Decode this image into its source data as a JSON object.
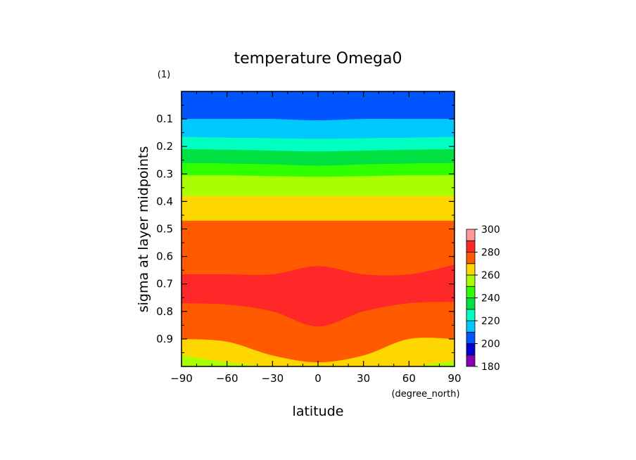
{
  "chart_data": {
    "type": "contour",
    "title": "temperature Omega0",
    "ylabel": "sigma at layer midpoints",
    "yunit": "(1)",
    "xlabel": "latitude",
    "xunit": "(degree_north)",
    "xlim": [
      -90,
      90
    ],
    "ylim": [
      0.0,
      1.0
    ],
    "y_inverted": true,
    "xticks": [
      -90,
      -60,
      -30,
      0,
      30,
      60,
      90
    ],
    "xtick_labels": [
      "−90",
      "−60",
      "−30",
      "0",
      "30",
      "60",
      "90"
    ],
    "yticks": [
      0.1,
      0.2,
      0.3,
      0.4,
      0.5,
      0.6,
      0.7,
      0.8,
      0.9
    ],
    "ytick_labels": [
      "0.1",
      "0.2",
      "0.3",
      "0.4",
      "0.5",
      "0.6",
      "0.7",
      "0.8",
      "0.9"
    ],
    "colorbar": {
      "levels": [
        180,
        190,
        200,
        210,
        220,
        230,
        240,
        250,
        260,
        270,
        280,
        290,
        300
      ],
      "labels": [
        "180",
        "200",
        "220",
        "240",
        "260",
        "280",
        "300"
      ],
      "colors": [
        "#8b00b0",
        "#0000d0",
        "#0055ff",
        "#00c8ff",
        "#00ffc0",
        "#00e040",
        "#30ff00",
        "#a8ff00",
        "#ffd700",
        "#ff5a00",
        "#ff2828",
        "#ff9898"
      ]
    },
    "contour_boundaries": [
      {
        "value": 200,
        "lat": [
          -90,
          -60,
          -30,
          0,
          30,
          60,
          90
        ],
        "sigma": [
          0.1,
          0.1,
          0.1,
          0.105,
          0.1,
          0.1,
          0.1
        ]
      },
      {
        "value": 210,
        "lat": [
          -90,
          -60,
          -30,
          0,
          30,
          60,
          90
        ],
        "sigma": [
          0.165,
          0.168,
          0.17,
          0.172,
          0.17,
          0.168,
          0.165
        ]
      },
      {
        "value": 220,
        "lat": [
          -90,
          -60,
          -30,
          0,
          30,
          60,
          90
        ],
        "sigma": [
          0.21,
          0.212,
          0.215,
          0.218,
          0.215,
          0.212,
          0.21
        ]
      },
      {
        "value": 230,
        "lat": [
          -90,
          -60,
          -30,
          0,
          30,
          60,
          90
        ],
        "sigma": [
          0.26,
          0.262,
          0.265,
          0.27,
          0.265,
          0.262,
          0.26
        ]
      },
      {
        "value": 240,
        "lat": [
          -90,
          -60,
          -30,
          0,
          30,
          60,
          90
        ],
        "sigma": [
          0.305,
          0.305,
          0.308,
          0.31,
          0.308,
          0.305,
          0.305
        ]
      },
      {
        "value": 250,
        "lat": [
          -90,
          -60,
          -30,
          0,
          30,
          60,
          90
        ],
        "sigma": [
          0.38,
          0.38,
          0.38,
          0.38,
          0.38,
          0.38,
          0.38
        ]
      },
      {
        "value": 260,
        "lat": [
          -90,
          -60,
          -30,
          0,
          30,
          60,
          90
        ],
        "sigma": [
          0.47,
          0.47,
          0.47,
          0.47,
          0.47,
          0.47,
          0.47
        ]
      },
      {
        "value": 270,
        "lat": [
          -90,
          -60,
          -30,
          0,
          30,
          60,
          90
        ],
        "sigma": [
          0.665,
          0.665,
          0.665,
          0.635,
          0.665,
          0.665,
          0.63
        ]
      },
      {
        "value": 280,
        "lat": [
          -90,
          -60,
          -30,
          0,
          30,
          60,
          90
        ],
        "sigma": [
          0.77,
          0.775,
          0.8,
          0.855,
          0.8,
          0.77,
          0.765
        ]
      },
      {
        "value": 290,
        "lat": [
          -90,
          -60,
          -30,
          0,
          30,
          60,
          90
        ],
        "sigma": [
          0.9,
          0.91,
          0.96,
          0.985,
          0.96,
          0.9,
          0.9
        ]
      },
      {
        "value": 300,
        "lat": [
          -90,
          -60,
          -30,
          0,
          30,
          60,
          90
        ],
        "sigma": [
          0.96,
          0.985,
          1.0,
          1.0,
          1.0,
          1.0,
          0.98
        ]
      }
    ],
    "band_colors": [
      "#0055ff",
      "#00c8ff",
      "#00ffc0",
      "#00e040",
      "#30ff00",
      "#a8ff00",
      "#ffd700",
      "#ff5a00",
      "#ff2828",
      "#ff5a00",
      "#ffd700",
      "#a8ff00"
    ]
  }
}
